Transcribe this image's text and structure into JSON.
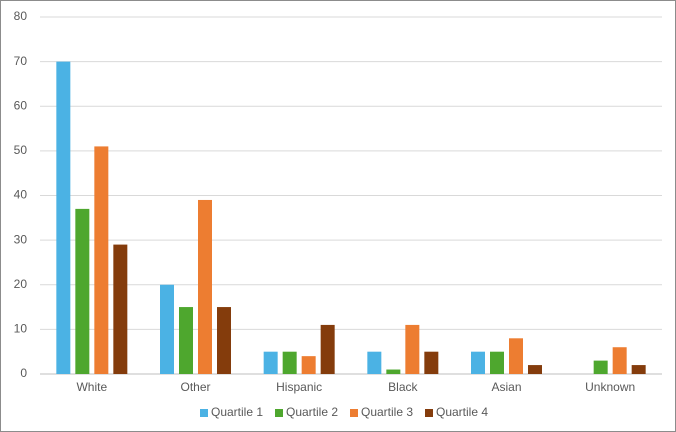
{
  "chart_data": {
    "type": "bar",
    "categories": [
      "White",
      "Other",
      "Hispanic",
      "Black",
      "Asian",
      "Unknown"
    ],
    "series": [
      {
        "name": "Quartile 1",
        "color": "#4bb2e4",
        "values": [
          70,
          20,
          5,
          5,
          5,
          0
        ]
      },
      {
        "name": "Quartile 2",
        "color": "#4ea72e",
        "values": [
          37,
          15,
          5,
          1,
          5,
          3
        ]
      },
      {
        "name": "Quartile 3",
        "color": "#ed7d31",
        "values": [
          51,
          39,
          4,
          11,
          8,
          6
        ]
      },
      {
        "name": "Quartile 4",
        "color": "#843c0c",
        "values": [
          29,
          15,
          11,
          5,
          2,
          2
        ]
      }
    ],
    "ylim": [
      0,
      80
    ],
    "yticks": [
      0,
      10,
      20,
      30,
      40,
      50,
      60,
      70,
      80
    ],
    "grid": true,
    "legend": "bottom"
  }
}
